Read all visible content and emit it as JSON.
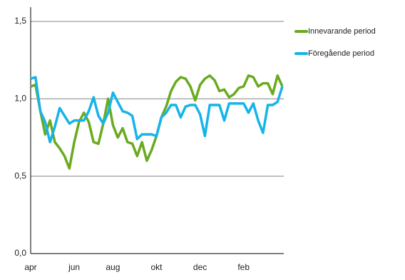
{
  "chart_data": {
    "type": "line",
    "categories": [
      "apr",
      null,
      null,
      null,
      null,
      null,
      null,
      null,
      null,
      "jun",
      null,
      null,
      null,
      null,
      null,
      null,
      null,
      "aug",
      null,
      null,
      null,
      null,
      null,
      null,
      null,
      null,
      "okt",
      null,
      null,
      null,
      null,
      null,
      null,
      null,
      null,
      "dec",
      null,
      null,
      null,
      null,
      null,
      null,
      null,
      null,
      "feb",
      null,
      null,
      null,
      null,
      null,
      null,
      null,
      null
    ],
    "series": [
      {
        "name": "Innevarande period",
        "color": "#6aaa1e",
        "values": [
          1.08,
          1.09,
          0.92,
          0.77,
          0.86,
          0.72,
          0.68,
          0.63,
          0.55,
          0.72,
          0.85,
          0.91,
          0.85,
          0.72,
          0.71,
          0.84,
          1.0,
          0.83,
          0.75,
          0.81,
          0.72,
          0.71,
          0.63,
          0.72,
          0.6,
          0.67,
          0.76,
          0.88,
          0.95,
          1.05,
          1.11,
          1.14,
          1.13,
          1.08,
          0.99,
          1.09,
          1.13,
          1.15,
          1.12,
          1.05,
          1.06,
          1.01,
          1.03,
          1.07,
          1.08,
          1.15,
          1.14,
          1.08,
          1.1,
          1.1,
          1.03,
          1.15,
          1.08
        ]
      },
      {
        "name": "Föregående period",
        "color": "#16b4e8",
        "values": [
          1.13,
          1.14,
          0.92,
          0.85,
          0.72,
          0.82,
          0.94,
          0.89,
          0.84,
          0.86,
          0.86,
          0.86,
          0.92,
          1.01,
          0.89,
          0.84,
          0.91,
          1.04,
          0.98,
          0.92,
          0.91,
          0.89,
          0.74,
          0.77,
          0.77,
          0.77,
          0.76,
          0.88,
          0.91,
          0.96,
          0.96,
          0.88,
          0.95,
          0.96,
          0.96,
          0.9,
          0.76,
          0.96,
          0.96,
          0.96,
          0.86,
          0.97,
          0.97,
          0.97,
          0.97,
          0.91,
          0.97,
          0.86,
          0.78,
          0.96,
          0.96,
          0.98,
          1.08
        ]
      }
    ],
    "ylim": [
      0,
      1.5
    ],
    "yticks": [
      {
        "value": 0,
        "label": "0,0"
      },
      {
        "value": 0.5,
        "label": "0,5"
      },
      {
        "value": 1,
        "label": "1,0"
      },
      {
        "value": 1.5,
        "label": "1,5"
      }
    ],
    "grid": true,
    "legend": "right"
  }
}
